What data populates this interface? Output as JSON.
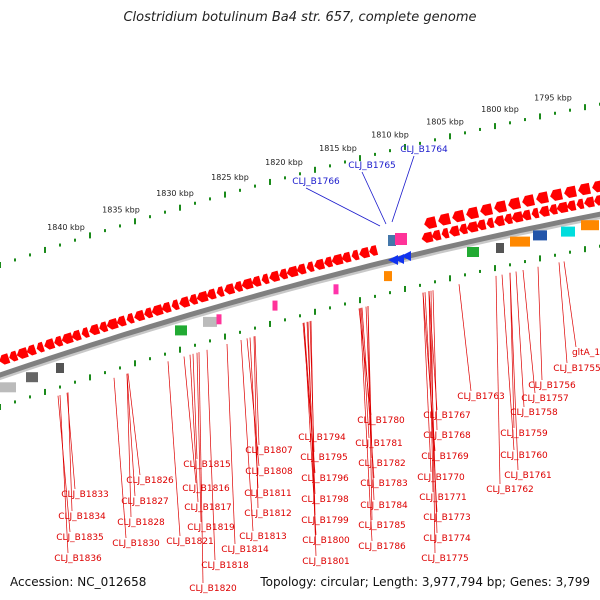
{
  "title": "Clostridium botulinum Ba4 str. 657, complete genome",
  "footer": {
    "accession": "Accession: NC_012658",
    "topology": "Topology: circular; Length: 3,977,794 bp; Genes: 3,799"
  },
  "colors": {
    "backbone": "#808080",
    "gene_forward": "#ff0000",
    "gene_label": "#dd0000",
    "highlight_label": "#1a1acc",
    "tick": "#1a8a1a"
  },
  "scale_ticks": [
    "1795 kbp",
    "1800 kbp",
    "1805 kbp",
    "1810 kbp",
    "1815 kbp",
    "1820 kbp",
    "1825 kbp",
    "1830 kbp",
    "1835 kbp",
    "1840 kbp"
  ],
  "highlighted_genes": [
    "CLJ_B1764",
    "CLJ_B1765",
    "CLJ_B1766"
  ],
  "gene_labels": [
    "gltA_1",
    "CLJ_B1755",
    "CLJ_B1756",
    "CLJ_B1757",
    "CLJ_B1758",
    "CLJ_B1759",
    "CLJ_B1760",
    "CLJ_B1761",
    "CLJ_B1762",
    "CLJ_B1763",
    "CLJ_B1767",
    "CLJ_B1768",
    "CLJ_B1769",
    "CLJ_B1770",
    "CLJ_B1771",
    "CLJ_B1773",
    "CLJ_B1774",
    "CLJ_B1775",
    "CLJ_B1780",
    "CLJ_B1781",
    "CLJ_B1782",
    "CLJ_B1783",
    "CLJ_B1784",
    "CLJ_B1785",
    "CLJ_B1786",
    "CLJ_B1794",
    "CLJ_B1795",
    "CLJ_B1796",
    "CLJ_B1798",
    "CLJ_B1799",
    "CLJ_B1800",
    "CLJ_B1801",
    "CLJ_B1807",
    "CLJ_B1808",
    "CLJ_B1811",
    "CLJ_B1812",
    "CLJ_B1813",
    "CLJ_B1814",
    "CLJ_B1815",
    "CLJ_B1816",
    "CLJ_B1817",
    "CLJ_B1819",
    "CLJ_B1821",
    "CLJ_B1818",
    "CLJ_B1820",
    "CLJ_B1826",
    "CLJ_B1827",
    "CLJ_B1828",
    "CLJ_B1830",
    "CLJ_B1833",
    "CLJ_B1834",
    "CLJ_B1835",
    "CLJ_B1836"
  ]
}
